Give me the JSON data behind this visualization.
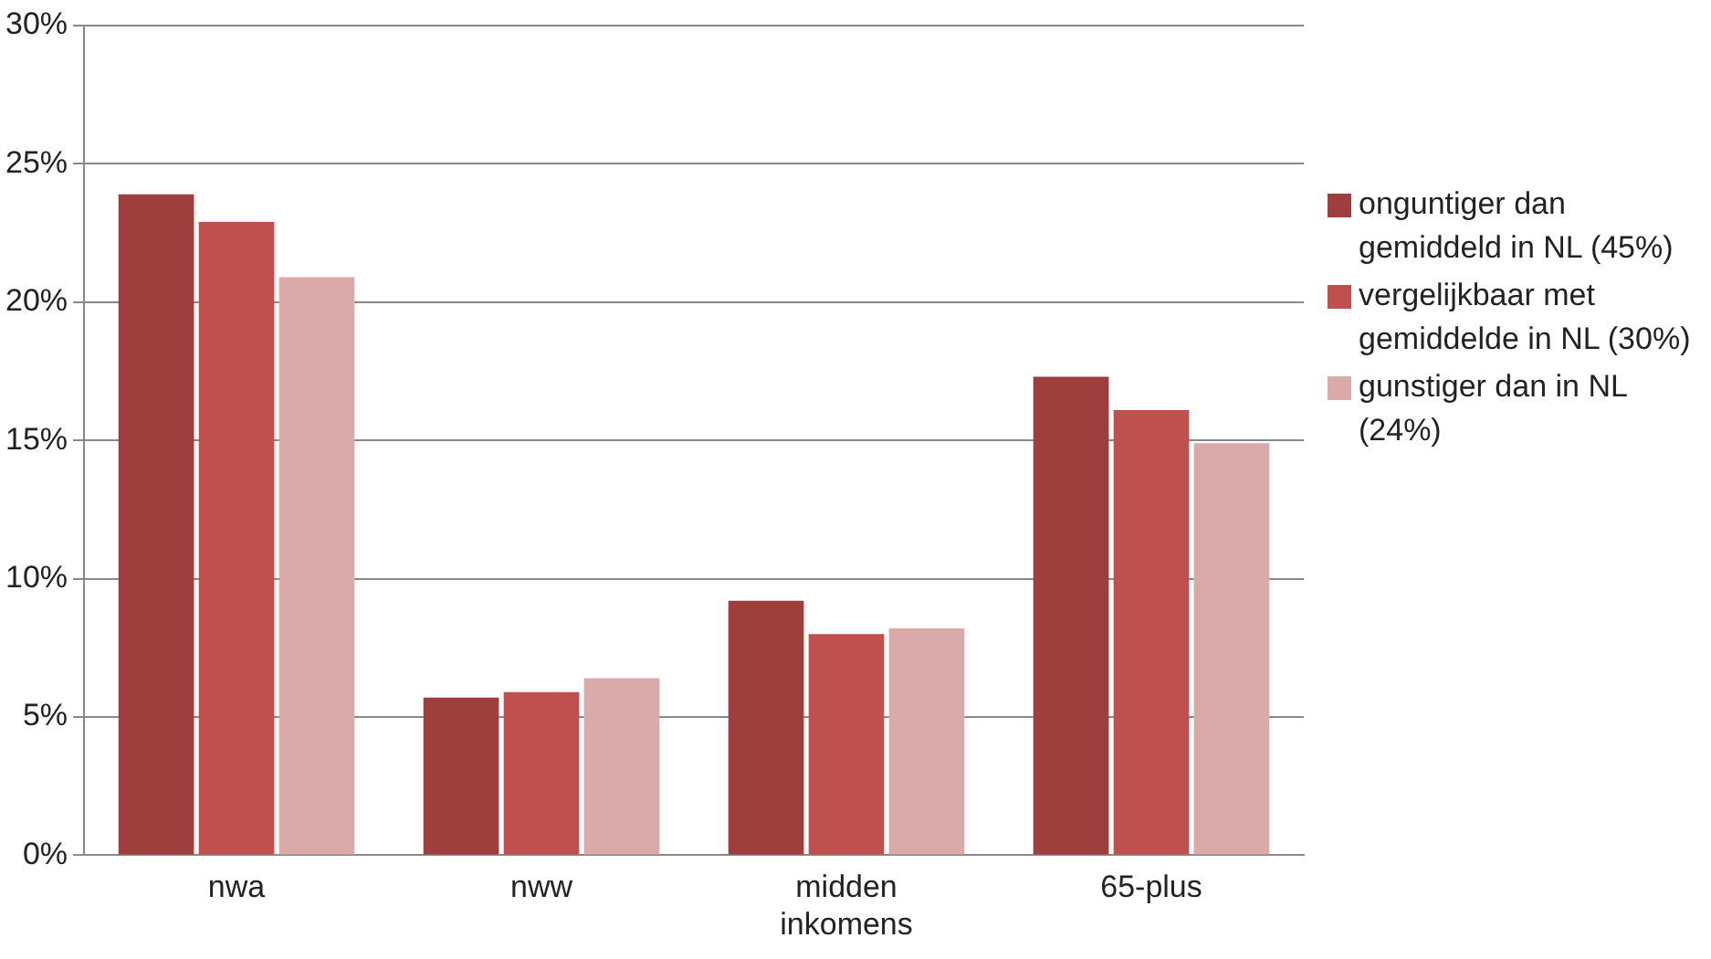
{
  "chart_data": {
    "type": "bar",
    "categories": [
      "nwa",
      "nww",
      "midden inkomens",
      "65-plus"
    ],
    "series": [
      {
        "name": "onguntiger dan gemiddeld in NL (45%)",
        "color": "#9e3f3e",
        "values": [
          23.9,
          5.7,
          9.2,
          17.3
        ]
      },
      {
        "name": "vergelijkbaar met gemiddelde in NL (30%)",
        "color": "#c0504d",
        "values": [
          22.9,
          5.9,
          8.0,
          16.1
        ]
      },
      {
        "name": "gunstiger dan in NL (24%)",
        "color": "#d9aaa9",
        "values": [
          20.9,
          6.4,
          8.2,
          14.9
        ]
      }
    ],
    "ylim": [
      0,
      30
    ],
    "yticks": [
      {
        "value": 0,
        "label": "0%"
      },
      {
        "value": 5,
        "label": "5%"
      },
      {
        "value": 10,
        "label": "10%"
      },
      {
        "value": 15,
        "label": "15%"
      },
      {
        "value": 20,
        "label": "20%"
      },
      {
        "value": 25,
        "label": "25%"
      },
      {
        "value": 30,
        "label": "30%"
      }
    ],
    "grid": "y",
    "legend": "right"
  }
}
